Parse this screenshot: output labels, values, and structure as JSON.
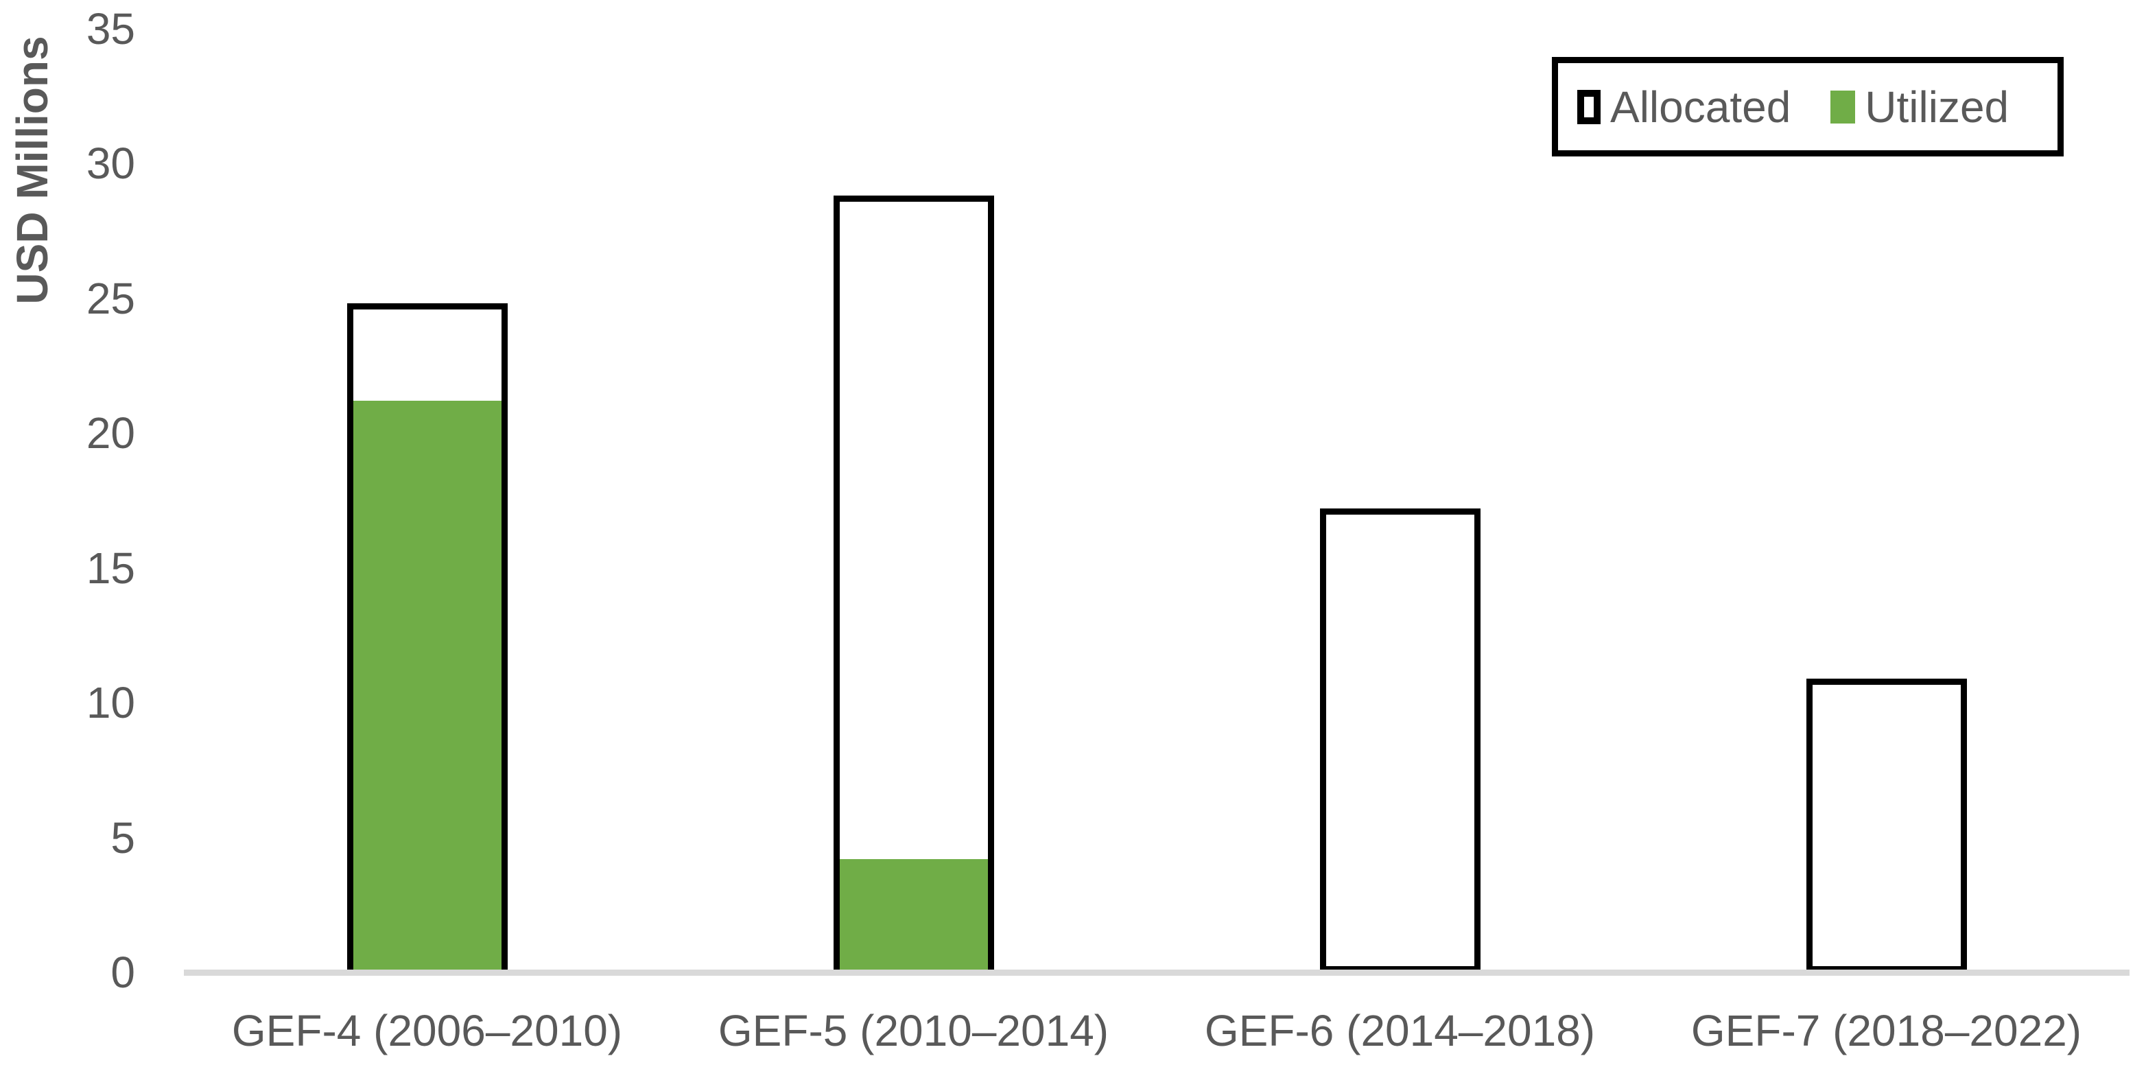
{
  "chart_data": {
    "type": "bar",
    "title": "",
    "xlabel": "",
    "ylabel": "USD Millions",
    "categories": [
      "GEF-4 (2006–2010)",
      "GEF-5 (2010–2014)",
      "GEF-6 (2014–2018)",
      "GEF-7 (2018–2022)"
    ],
    "series": [
      {
        "name": "Allocated",
        "values": [
          24.8,
          28.8,
          17.2,
          10.9
        ],
        "fill": "#FFFFFF",
        "border": "#000000"
      },
      {
        "name": "Utilized",
        "values": [
          21.2,
          4.2,
          0,
          0
        ],
        "fill": "#70AD47",
        "border": null
      }
    ],
    "ylim": [
      0,
      35
    ],
    "ytick_step": 5,
    "yticks": [
      0,
      5,
      10,
      15,
      20,
      25,
      30,
      35
    ],
    "grid": false,
    "bar_style": "overlapped",
    "legend_position": "top-right"
  },
  "legend": {
    "items": [
      {
        "label": "Allocated",
        "swatch": "white-square-black-outline"
      },
      {
        "label": "Utilized",
        "swatch": "green-square"
      }
    ]
  },
  "colors": {
    "text": "#595959",
    "axis_line": "#D9D9D9",
    "bar_border": "#000000",
    "allocated_fill": "#FFFFFF",
    "utilized_green": "#70AD47",
    "background": "#FFFFFF"
  }
}
